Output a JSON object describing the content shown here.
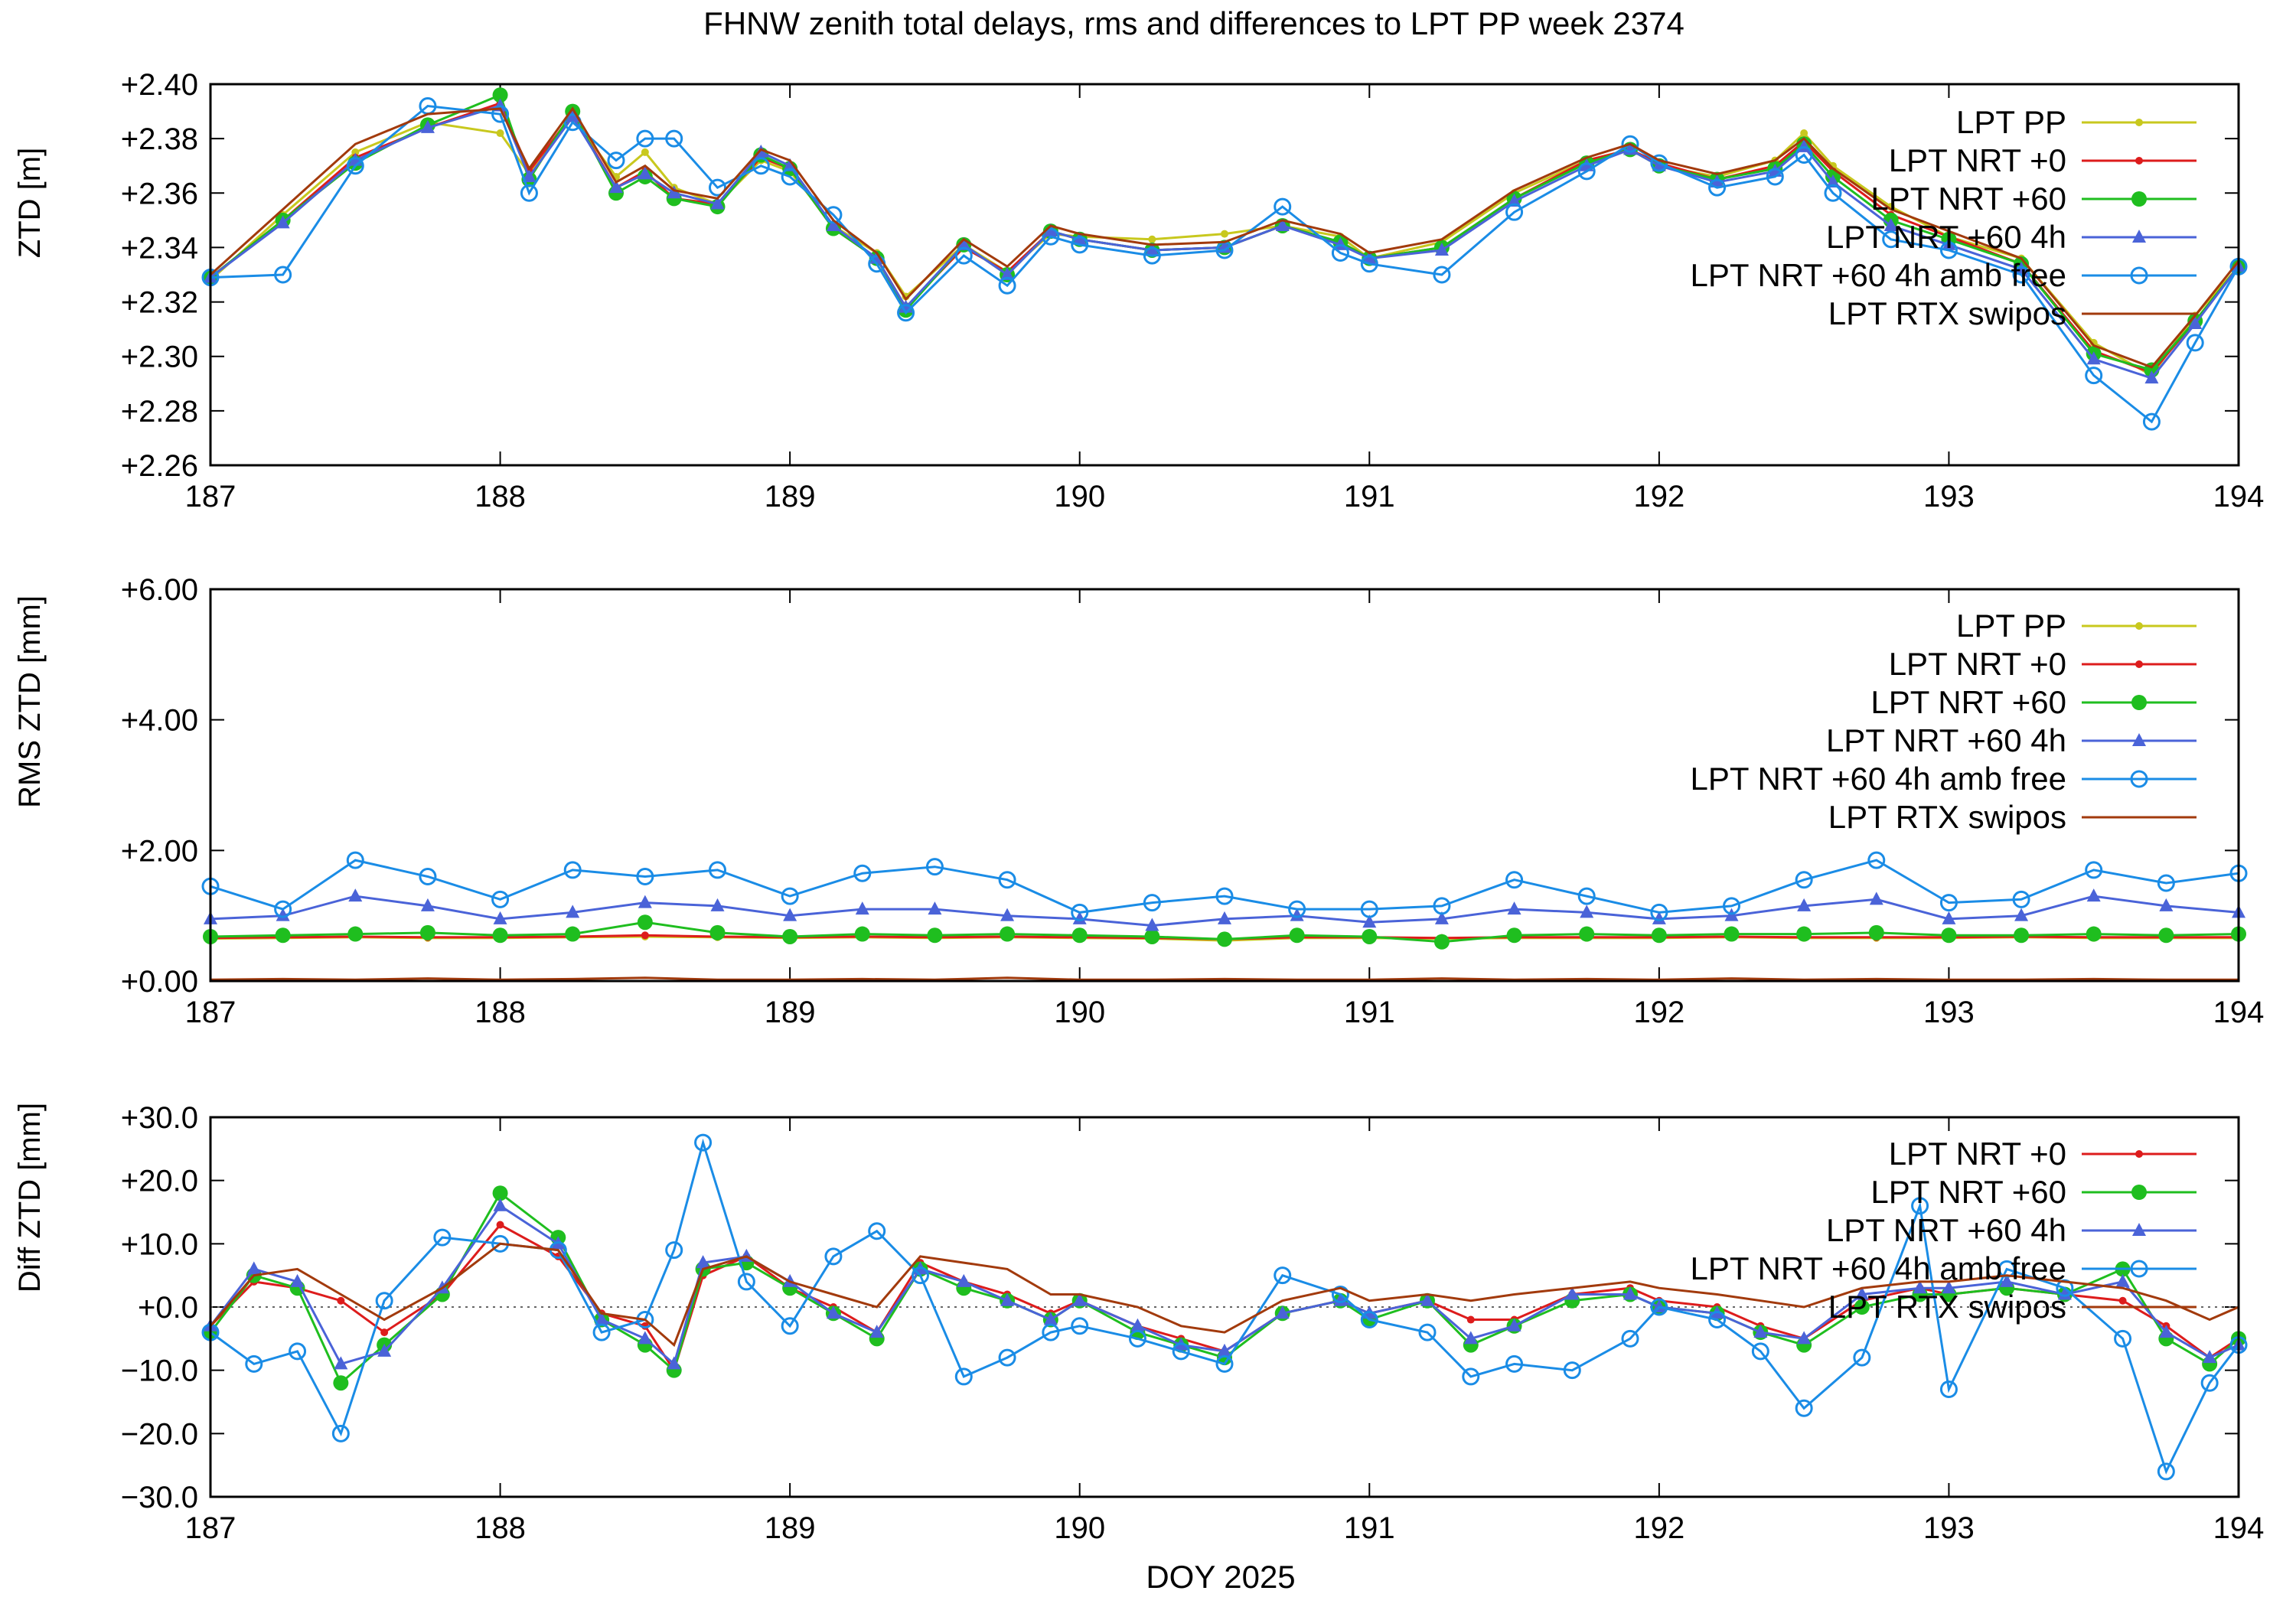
{
  "title": "FHNW zenith total delays, rms and differences to LPT PP week 2374",
  "xlabel": "DOY 2025",
  "x_ticks": [
    "187",
    "188",
    "189",
    "190",
    "191",
    "192",
    "193",
    "194"
  ],
  "series_styles": {
    "LPT PP": {
      "color": "#c8c81e",
      "marker": "small-dot"
    },
    "LPT NRT +0": {
      "color": "#dd1c1c",
      "marker": "small-dot"
    },
    "LPT NRT +60": {
      "color": "#1fbe1f",
      "marker": "big-dot"
    },
    "LPT NRT +60 4h": {
      "color": "#4a63d8",
      "marker": "triangle"
    },
    "LPT NRT +60 4h amb free": {
      "color": "#1a8ce6",
      "marker": "open-circle"
    },
    "LPT RTX swipos": {
      "color": "#a23a0c",
      "marker": "none"
    }
  },
  "chart_data": [
    {
      "type": "line",
      "ylabel": "ZTD [m]",
      "xlim": [
        187,
        194
      ],
      "ylim": [
        2.26,
        2.4
      ],
      "y_ticks": [
        "+2.26",
        "+2.28",
        "+2.30",
        "+2.32",
        "+2.34",
        "+2.36",
        "+2.38",
        "+2.40"
      ],
      "x": [
        187.0,
        187.25,
        187.5,
        187.75,
        188.0,
        188.1,
        188.25,
        188.4,
        188.5,
        188.6,
        188.75,
        188.9,
        189.0,
        189.15,
        189.3,
        189.4,
        189.6,
        189.75,
        189.9,
        190.0,
        190.25,
        190.5,
        190.7,
        190.9,
        191.0,
        191.25,
        191.5,
        191.75,
        191.9,
        192.0,
        192.2,
        192.4,
        192.5,
        192.6,
        192.8,
        193.0,
        193.25,
        193.5,
        193.7,
        193.85,
        194.0
      ],
      "series": [
        {
          "name": "LPT PP",
          "values": [
            2.328,
            2.352,
            2.375,
            2.386,
            2.382,
            2.367,
            2.388,
            2.366,
            2.375,
            2.362,
            2.356,
            2.372,
            2.368,
            2.348,
            2.338,
            2.322,
            2.341,
            2.331,
            2.345,
            2.344,
            2.343,
            2.345,
            2.348,
            2.344,
            2.336,
            2.342,
            2.36,
            2.372,
            2.376,
            2.37,
            2.366,
            2.372,
            2.382,
            2.37,
            2.355,
            2.344,
            2.336,
            2.305,
            2.293,
            2.315,
            2.333
          ]
        },
        {
          "name": "LPT NRT +0",
          "values": [
            2.329,
            2.35,
            2.373,
            2.384,
            2.393,
            2.368,
            2.389,
            2.362,
            2.368,
            2.358,
            2.356,
            2.373,
            2.369,
            2.347,
            2.336,
            2.318,
            2.34,
            2.331,
            2.346,
            2.343,
            2.339,
            2.34,
            2.348,
            2.342,
            2.336,
            2.34,
            2.358,
            2.372,
            2.376,
            2.371,
            2.365,
            2.37,
            2.379,
            2.368,
            2.352,
            2.344,
            2.334,
            2.302,
            2.294,
            2.313,
            2.333
          ]
        },
        {
          "name": "LPT NRT +60",
          "values": [
            2.329,
            2.35,
            2.371,
            2.385,
            2.396,
            2.365,
            2.39,
            2.36,
            2.366,
            2.358,
            2.355,
            2.374,
            2.369,
            2.347,
            2.336,
            2.317,
            2.341,
            2.33,
            2.346,
            2.343,
            2.339,
            2.34,
            2.348,
            2.342,
            2.336,
            2.34,
            2.358,
            2.371,
            2.376,
            2.37,
            2.365,
            2.369,
            2.378,
            2.366,
            2.35,
            2.343,
            2.334,
            2.301,
            2.295,
            2.313,
            2.333
          ]
        },
        {
          "name": "LPT NRT +60 4h",
          "values": [
            2.329,
            2.349,
            2.372,
            2.384,
            2.392,
            2.366,
            2.388,
            2.362,
            2.367,
            2.36,
            2.356,
            2.375,
            2.37,
            2.348,
            2.336,
            2.318,
            2.341,
            2.33,
            2.346,
            2.343,
            2.339,
            2.34,
            2.348,
            2.341,
            2.336,
            2.339,
            2.357,
            2.37,
            2.376,
            2.37,
            2.364,
            2.368,
            2.377,
            2.364,
            2.348,
            2.341,
            2.332,
            2.299,
            2.292,
            2.312,
            2.333
          ]
        },
        {
          "name": "LPT NRT +60 4h amb free",
          "values": [
            2.329,
            2.33,
            2.37,
            2.392,
            2.389,
            2.36,
            2.386,
            2.372,
            2.38,
            2.38,
            2.362,
            2.37,
            2.366,
            2.352,
            2.334,
            2.316,
            2.337,
            2.326,
            2.344,
            2.341,
            2.337,
            2.339,
            2.355,
            2.338,
            2.334,
            2.33,
            2.353,
            2.368,
            2.378,
            2.371,
            2.362,
            2.366,
            2.374,
            2.36,
            2.343,
            2.339,
            2.33,
            2.293,
            2.276,
            2.305,
            2.333
          ]
        },
        {
          "name": "LPT RTX swipos",
          "values": [
            2.33,
            2.354,
            2.378,
            2.389,
            2.391,
            2.369,
            2.391,
            2.364,
            2.37,
            2.361,
            2.358,
            2.376,
            2.372,
            2.35,
            2.338,
            2.321,
            2.343,
            2.333,
            2.348,
            2.345,
            2.341,
            2.342,
            2.35,
            2.345,
            2.338,
            2.343,
            2.361,
            2.373,
            2.378,
            2.372,
            2.367,
            2.372,
            2.38,
            2.369,
            2.354,
            2.346,
            2.336,
            2.304,
            2.296,
            2.315,
            2.335
          ]
        }
      ],
      "legend": [
        "LPT PP",
        "LPT NRT +0",
        "LPT NRT +60",
        "LPT NRT +60 4h",
        "LPT NRT +60 4h amb free",
        "LPT RTX swipos"
      ],
      "legend_position": "top-right",
      "grid": false
    },
    {
      "type": "line",
      "ylabel": "RMS ZTD [mm]",
      "xlim": [
        187,
        194
      ],
      "ylim": [
        0,
        6
      ],
      "y_ticks": [
        "+0.00",
        "+2.00",
        "+4.00",
        "+6.00"
      ],
      "x": [
        187.0,
        187.25,
        187.5,
        187.75,
        188.0,
        188.25,
        188.5,
        188.75,
        189.0,
        189.25,
        189.5,
        189.75,
        190.0,
        190.25,
        190.5,
        190.75,
        191.0,
        191.25,
        191.5,
        191.75,
        192.0,
        192.25,
        192.5,
        192.75,
        193.0,
        193.25,
        193.5,
        193.75,
        194.0
      ],
      "series": [
        {
          "name": "LPT PP",
          "values": [
            0.65,
            0.66,
            0.67,
            0.66,
            0.66,
            0.67,
            0.68,
            0.67,
            0.66,
            0.67,
            0.66,
            0.67,
            0.66,
            0.65,
            0.62,
            0.66,
            0.66,
            0.65,
            0.66,
            0.66,
            0.66,
            0.67,
            0.66,
            0.66,
            0.66,
            0.67,
            0.66,
            0.66,
            0.66
          ]
        },
        {
          "name": "LPT NRT +0",
          "values": [
            0.66,
            0.67,
            0.68,
            0.67,
            0.67,
            0.68,
            0.7,
            0.68,
            0.67,
            0.68,
            0.67,
            0.68,
            0.67,
            0.66,
            0.64,
            0.67,
            0.67,
            0.66,
            0.67,
            0.67,
            0.67,
            0.68,
            0.67,
            0.67,
            0.67,
            0.68,
            0.67,
            0.67,
            0.67
          ]
        },
        {
          "name": "LPT NRT +60",
          "values": [
            0.68,
            0.7,
            0.72,
            0.74,
            0.7,
            0.72,
            0.9,
            0.74,
            0.68,
            0.72,
            0.7,
            0.72,
            0.7,
            0.68,
            0.64,
            0.7,
            0.68,
            0.6,
            0.7,
            0.72,
            0.7,
            0.72,
            0.72,
            0.74,
            0.7,
            0.7,
            0.72,
            0.7,
            0.72
          ]
        },
        {
          "name": "LPT NRT +60 4h",
          "values": [
            0.95,
            1.0,
            1.3,
            1.15,
            0.95,
            1.05,
            1.2,
            1.15,
            1.0,
            1.1,
            1.1,
            1.0,
            0.95,
            0.85,
            0.95,
            1.0,
            0.9,
            0.95,
            1.1,
            1.05,
            0.95,
            1.0,
            1.15,
            1.25,
            0.95,
            1.0,
            1.3,
            1.15,
            1.05
          ]
        },
        {
          "name": "LPT NRT +60 4h amb free",
          "values": [
            1.45,
            1.1,
            1.85,
            1.6,
            1.25,
            1.7,
            1.6,
            1.7,
            1.3,
            1.65,
            1.75,
            1.55,
            1.05,
            1.2,
            1.3,
            1.1,
            1.1,
            1.15,
            1.55,
            1.3,
            1.05,
            1.15,
            1.55,
            1.85,
            1.2,
            1.25,
            1.7,
            1.5,
            1.65
          ]
        },
        {
          "name": "LPT RTX swipos",
          "values": [
            0.02,
            0.03,
            0.02,
            0.04,
            0.02,
            0.03,
            0.05,
            0.02,
            0.02,
            0.03,
            0.02,
            0.05,
            0.02,
            0.02,
            0.03,
            0.02,
            0.02,
            0.04,
            0.02,
            0.03,
            0.02,
            0.04,
            0.02,
            0.03,
            0.02,
            0.02,
            0.03,
            0.02,
            0.02
          ]
        }
      ],
      "legend": [
        "LPT PP",
        "LPT NRT +0",
        "LPT NRT +60",
        "LPT NRT +60 4h",
        "LPT NRT +60 4h amb free",
        "LPT RTX swipos"
      ],
      "legend_position": "top-right",
      "grid": false
    },
    {
      "type": "line",
      "ylabel": "Diff ZTD [mm]",
      "xlim": [
        187,
        194
      ],
      "ylim": [
        -30,
        30
      ],
      "y_ticks": [
        "−30.0",
        "−20.0",
        "−10.0",
        "+0.0",
        "+10.0",
        "+20.0",
        "+30.0"
      ],
      "zero_line": true,
      "x": [
        187.0,
        187.15,
        187.3,
        187.45,
        187.6,
        187.8,
        188.0,
        188.2,
        188.35,
        188.5,
        188.6,
        188.7,
        188.85,
        189.0,
        189.15,
        189.3,
        189.45,
        189.6,
        189.75,
        189.9,
        190.0,
        190.2,
        190.35,
        190.5,
        190.7,
        190.9,
        191.0,
        191.2,
        191.35,
        191.5,
        191.7,
        191.9,
        192.0,
        192.2,
        192.35,
        192.5,
        192.7,
        192.9,
        193.0,
        193.2,
        193.4,
        193.6,
        193.75,
        193.9,
        194.0
      ],
      "series": [
        {
          "name": "LPT NRT +0",
          "values": [
            -3.0,
            4.0,
            3.0,
            1.0,
            -4.0,
            2.0,
            13.0,
            8.0,
            -1.0,
            -3.0,
            -10.0,
            5.0,
            8.0,
            3.0,
            0.0,
            -4.0,
            7.0,
            4.0,
            2.0,
            -1.0,
            1.0,
            -3.0,
            -5.0,
            -7.0,
            -1.0,
            1.0,
            -1.0,
            1.0,
            -2.0,
            -2.0,
            2.0,
            3.0,
            1.0,
            0.0,
            -3.0,
            -5.0,
            1.0,
            3.0,
            2.0,
            3.0,
            2.0,
            1.0,
            -3.0,
            -8.0,
            -5.0
          ]
        },
        {
          "name": "LPT NRT +60",
          "values": [
            -4.0,
            5.0,
            3.0,
            -12.0,
            -6.0,
            2.0,
            18.0,
            11.0,
            -2.0,
            -6.0,
            -10.0,
            6.0,
            7.0,
            3.0,
            -1.0,
            -5.0,
            6.0,
            3.0,
            1.0,
            -2.0,
            1.0,
            -4.0,
            -6.0,
            -8.0,
            -1.0,
            1.0,
            -2.0,
            1.0,
            -6.0,
            -3.0,
            1.0,
            2.0,
            0.0,
            -1.0,
            -4.0,
            -6.0,
            0.0,
            2.0,
            2.0,
            3.0,
            2.0,
            6.0,
            -5.0,
            -9.0,
            -5.0
          ]
        },
        {
          "name": "LPT NRT +60 4h",
          "values": [
            -3.0,
            6.0,
            4.0,
            -9.0,
            -7.0,
            3.0,
            16.0,
            10.0,
            -2.0,
            -5.0,
            -9.0,
            7.0,
            8.0,
            4.0,
            -1.0,
            -4.0,
            6.0,
            4.0,
            1.0,
            -2.0,
            1.0,
            -3.0,
            -6.0,
            -7.0,
            -1.0,
            1.0,
            -1.0,
            1.0,
            -5.0,
            -3.0,
            2.0,
            2.0,
            0.0,
            -1.0,
            -4.0,
            -5.0,
            2.0,
            3.0,
            3.0,
            4.0,
            2.0,
            4.0,
            -4.0,
            -8.0,
            -6.0
          ]
        },
        {
          "name": "LPT NRT +60 4h amb free",
          "values": [
            -4.0,
            -9.0,
            -7.0,
            -20.0,
            1.0,
            11.0,
            10.0,
            9.0,
            -4.0,
            -2.0,
            9.0,
            26.0,
            4.0,
            -3.0,
            8.0,
            12.0,
            5.0,
            -11.0,
            -8.0,
            -4.0,
            -3.0,
            -5.0,
            -7.0,
            -9.0,
            5.0,
            2.0,
            -2.0,
            -4.0,
            -11.0,
            -9.0,
            -10.0,
            -5.0,
            0.0,
            -2.0,
            -7.0,
            -16.0,
            -8.0,
            16.0,
            -13.0,
            6.0,
            3.0,
            -5.0,
            -26.0,
            -12.0,
            -6.0
          ]
        },
        {
          "name": "LPT RTX swipos",
          "values": [
            -3.0,
            5.0,
            6.0,
            2.0,
            -2.0,
            3.0,
            10.0,
            9.0,
            -1.0,
            -2.0,
            -6.0,
            6.0,
            8.0,
            4.0,
            2.0,
            0.0,
            8.0,
            7.0,
            6.0,
            2.0,
            2.0,
            0.0,
            -3.0,
            -4.0,
            1.0,
            3.0,
            1.0,
            2.0,
            1.0,
            2.0,
            3.0,
            4.0,
            3.0,
            2.0,
            1.0,
            0.0,
            3.0,
            4.0,
            4.0,
            5.0,
            4.0,
            3.0,
            1.0,
            -2.0,
            0.0
          ]
        }
      ],
      "legend": [
        "LPT NRT +0",
        "LPT NRT +60",
        "LPT NRT +60 4h",
        "LPT NRT +60 4h amb free",
        "LPT RTX swipos"
      ],
      "legend_position": "top-right",
      "grid": false
    }
  ]
}
